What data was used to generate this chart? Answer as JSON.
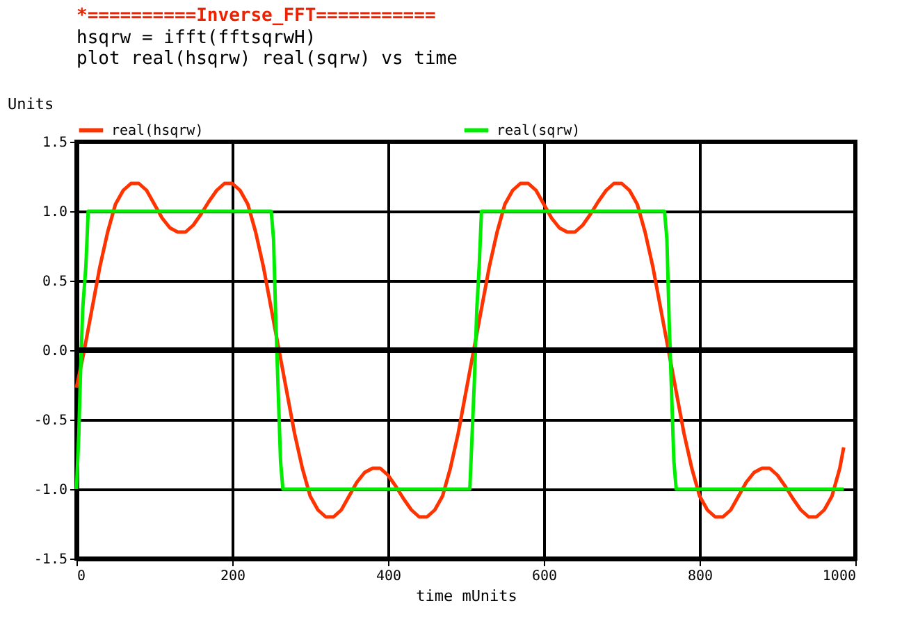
{
  "chart_data": {
    "type": "line",
    "title": "*==========Inverse_FFT===========",
    "annotations": [
      "hsqrw = ifft(fftsqrwH)",
      "plot      real(hsqrw)  real(sqrw) vs time"
    ],
    "ylabel": "Units",
    "xlabel": "time   mUnits",
    "xlim": [
      0,
      1000
    ],
    "xticks": [
      0,
      200,
      400,
      600,
      800,
      1000
    ],
    "ylim": [
      -1.5,
      1.5
    ],
    "yticks": [
      -1.5,
      {
        "value": -1,
        "label": "-1.0"
      },
      -0.5,
      {
        "value": 0,
        "label": "0.0"
      },
      0.5,
      {
        "value": 1,
        "label": "1.0"
      },
      1.5
    ],
    "grid": true,
    "legend": "top",
    "line_style": "solid",
    "marker": "none",
    "series": [
      {
        "name": "real(hsqrw)",
        "color": "#ff3300",
        "x": [
          0,
          10,
          20,
          30,
          40,
          50,
          60,
          70,
          80,
          90,
          100,
          110,
          120,
          130,
          140,
          150,
          160,
          170,
          180,
          190,
          200,
          210,
          220,
          230,
          240,
          250,
          260,
          270,
          280,
          290,
          300,
          310,
          320,
          330,
          340,
          350,
          360,
          370,
          380,
          390,
          400,
          410,
          420,
          430,
          440,
          450,
          460,
          470,
          480,
          490,
          500,
          510,
          520,
          530,
          540,
          550,
          560,
          570,
          580,
          590,
          600,
          610,
          620,
          630,
          640,
          650,
          660,
          670,
          680,
          690,
          700,
          710,
          720,
          730,
          740,
          750,
          760,
          770,
          780,
          790,
          800,
          810,
          820,
          830,
          840,
          850,
          860,
          870,
          880,
          890,
          900,
          910,
          920,
          930,
          940,
          950,
          960,
          970,
          980,
          985
        ],
        "values": [
          -0.27,
          0.0,
          0.3,
          0.6,
          0.85,
          1.05,
          1.15,
          1.2,
          1.2,
          1.15,
          1.05,
          0.95,
          0.88,
          0.85,
          0.85,
          0.9,
          0.98,
          1.07,
          1.15,
          1.2,
          1.2,
          1.15,
          1.05,
          0.85,
          0.6,
          0.3,
          0.0,
          -0.3,
          -0.6,
          -0.85,
          -1.05,
          -1.15,
          -1.2,
          -1.2,
          -1.15,
          -1.05,
          -0.95,
          -0.88,
          -0.85,
          -0.85,
          -0.9,
          -0.98,
          -1.07,
          -1.15,
          -1.2,
          -1.2,
          -1.15,
          -1.05,
          -0.85,
          -0.6,
          -0.3,
          0.0,
          0.3,
          0.6,
          0.85,
          1.05,
          1.15,
          1.2,
          1.2,
          1.15,
          1.05,
          0.95,
          0.88,
          0.85,
          0.85,
          0.9,
          0.98,
          1.07,
          1.15,
          1.2,
          1.2,
          1.15,
          1.05,
          0.85,
          0.6,
          0.3,
          0.0,
          -0.3,
          -0.6,
          -0.85,
          -1.05,
          -1.15,
          -1.2,
          -1.2,
          -1.15,
          -1.05,
          -0.95,
          -0.88,
          -0.85,
          -0.85,
          -0.9,
          -0.98,
          -1.07,
          -1.15,
          -1.2,
          -1.2,
          -1.15,
          -1.05,
          -0.85,
          -0.7
        ]
      },
      {
        "name": "real(sqrw)",
        "color": "#00ee00",
        "x": [
          0,
          3,
          5,
          8,
          12,
          15,
          250,
          253,
          256,
          259,
          262,
          265,
          505,
          508,
          511,
          514,
          517,
          520,
          755,
          758,
          761,
          764,
          767,
          770,
          985
        ],
        "values": [
          -1,
          -0.6,
          -0.2,
          0.3,
          0.6,
          1,
          1,
          0.8,
          0.2,
          -0.3,
          -0.8,
          -1,
          -1,
          -0.6,
          -0.2,
          0.3,
          0.6,
          1,
          1,
          0.8,
          0.2,
          -0.3,
          -0.8,
          -1,
          -1
        ]
      }
    ]
  }
}
